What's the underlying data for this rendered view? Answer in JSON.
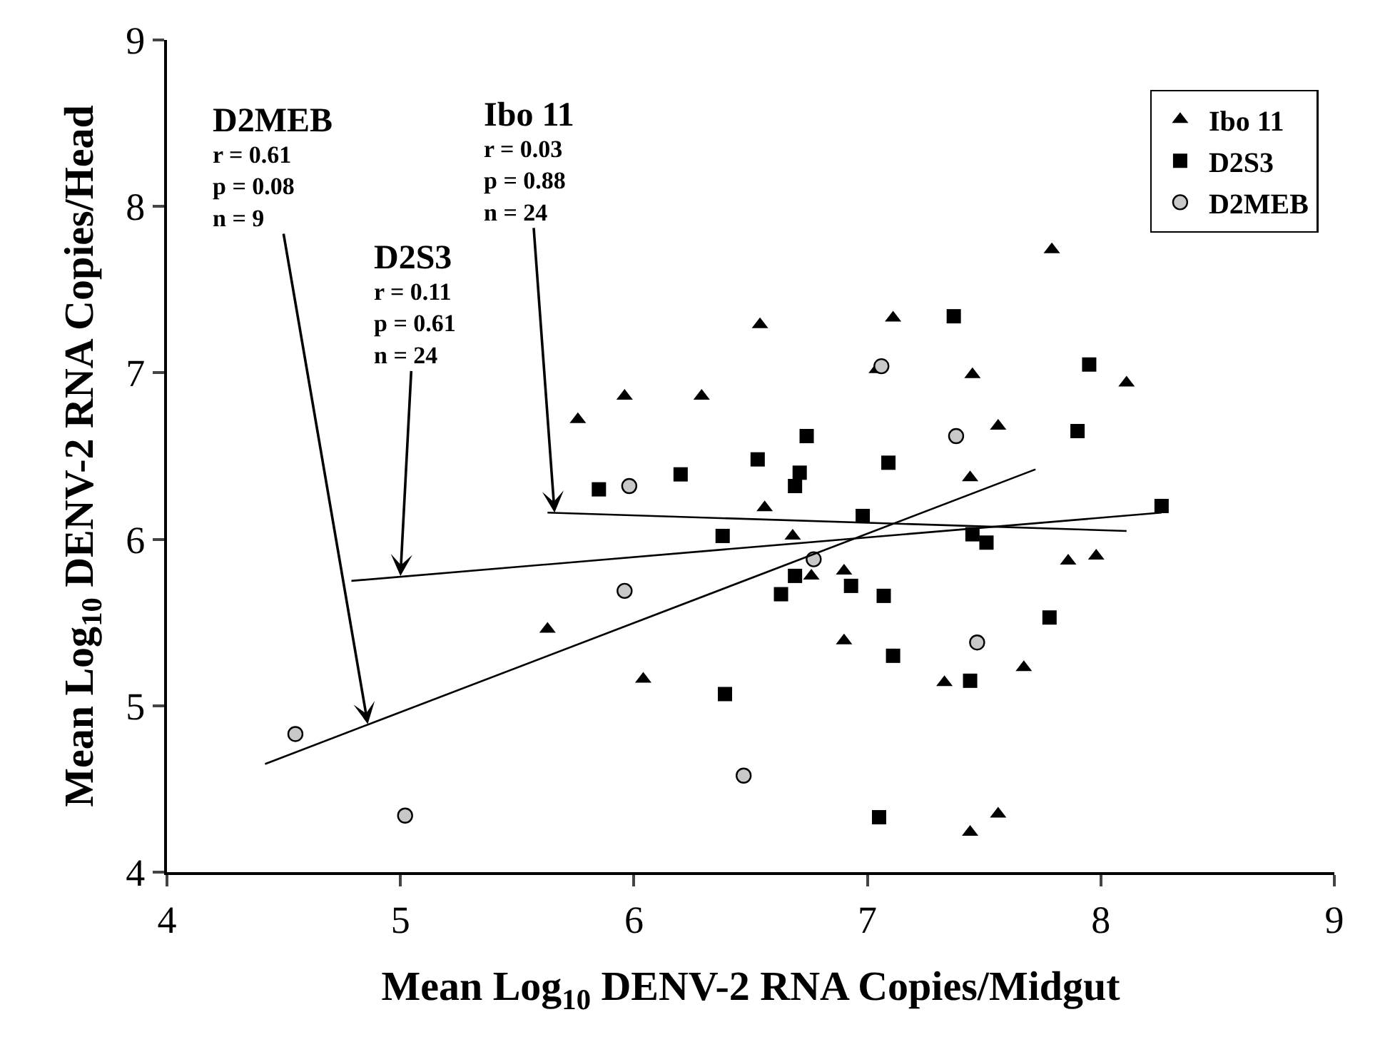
{
  "chart_data": {
    "type": "scatter",
    "xlabel": "Mean Log$_{10}$ DENV-2 RNA Copies/Midgut",
    "ylabel": "Mean Log$_{10}$ DENV-2 RNA Copies/Head",
    "xlim": [
      4,
      9
    ],
    "ylim": [
      4,
      9
    ],
    "xticks": [
      4,
      5,
      6,
      7,
      8,
      9
    ],
    "yticks": [
      4,
      5,
      6,
      7,
      8,
      9
    ],
    "grid": false,
    "legend": "top right",
    "series": [
      {
        "name": "Ibo 11",
        "color": "#000000",
        "marker": "triangle",
        "x": [
          5.76,
          5.96,
          6.29,
          6.54,
          7.11,
          7.79,
          7.04,
          7.45,
          8.11,
          7.56,
          7.44,
          6.56,
          6.68,
          6.76,
          6.9,
          7.86,
          7.98,
          6.9,
          7.67,
          7.33,
          7.56,
          7.44,
          5.63,
          6.04
        ],
        "values": [
          6.72,
          6.86,
          6.86,
          7.29,
          7.33,
          7.74,
          7.02,
          6.99,
          6.94,
          6.68,
          6.37,
          6.19,
          6.02,
          5.78,
          5.81,
          5.87,
          5.9,
          5.39,
          5.23,
          5.14,
          4.35,
          4.24,
          5.46,
          5.16
        ]
      },
      {
        "name": "D2S3",
        "color": "#000000",
        "marker": "square",
        "x": [
          5.85,
          6.2,
          6.53,
          6.38,
          6.39,
          7.37,
          7.95,
          6.74,
          7.9,
          7.09,
          6.71,
          6.69,
          6.98,
          8.26,
          7.45,
          7.51,
          6.69,
          6.63,
          6.93,
          7.07,
          7.78,
          7.11,
          7.44,
          7.05
        ],
        "values": [
          6.3,
          6.39,
          6.48,
          6.02,
          5.07,
          7.34,
          7.05,
          6.62,
          6.65,
          6.46,
          6.4,
          6.32,
          6.14,
          6.2,
          6.03,
          5.98,
          5.78,
          5.67,
          5.72,
          5.66,
          5.53,
          5.3,
          5.15,
          4.33
        ]
      },
      {
        "name": "D2MEB",
        "color": "#c8c8c8",
        "marker": "circle",
        "x": [
          5.98,
          5.96,
          4.55,
          5.02,
          6.47,
          7.06,
          7.38,
          6.77,
          7.47
        ],
        "values": [
          6.32,
          5.69,
          4.83,
          4.34,
          4.58,
          7.04,
          6.62,
          5.88,
          5.38
        ]
      },
      {
        "type": "line",
        "color": "#000000",
        "marker": "none",
        "x": [
          4.42,
          7.72
        ],
        "values": [
          4.65,
          6.42
        ]
      },
      {
        "type": "line",
        "color": "#000000",
        "marker": "none",
        "x": [
          4.79,
          8.26
        ],
        "values": [
          5.75,
          6.16
        ]
      },
      {
        "type": "line",
        "color": "#000000",
        "marker": "none",
        "x": [
          5.63,
          8.11
        ],
        "values": [
          6.16,
          6.05
        ]
      }
    ],
    "annotations": [
      {
        "text": "D2MEB\nr = 0.61\np = 0.08\nn = 9",
        "x": 4.86,
        "y": 4.89
      },
      {
        "text": "D2S3\nr = 0.11\np = 0.61\nn = 24",
        "x": 5.0,
        "y": 5.78
      },
      {
        "text": "Ibo 11\nr = 0.03\np = 0.88\nn = 24",
        "x": 5.66,
        "y": 6.16
      }
    ]
  }
}
